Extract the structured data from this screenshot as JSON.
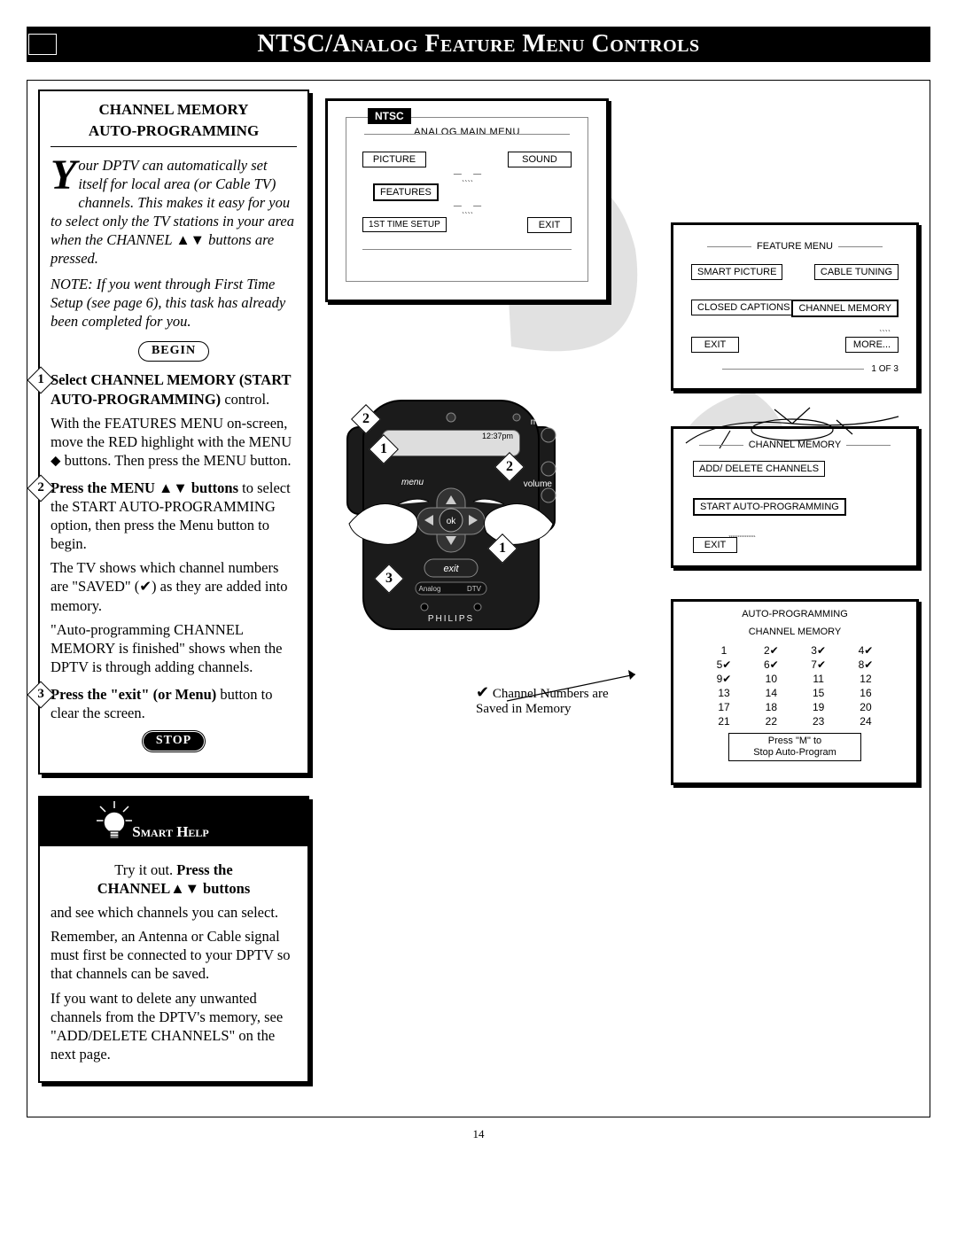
{
  "title": "NTSC/Analog Feature Menu Controls",
  "page_number": "14",
  "panel1": {
    "heading_line1": "CHANNEL MEMORY",
    "heading_line2": "AUTO-PROGRAMMING",
    "intro": "Your DPTV can automatically set itself for local area (or Cable TV) channels. This makes it easy for you to select only the TV stations in your area when the CHANNEL ▲▼ buttons are pressed.",
    "note": "NOTE: If you went through First Time Setup (see page 6), this task has already been completed for you.",
    "begin": "BEGIN",
    "stop": "STOP",
    "step1": {
      "bold": "Select CHANNEL MEMORY (START AUTO-PROGRAMMING)",
      "tail": " control.",
      "p2": "With the FEATURES MENU on-screen, move the RED highlight with the MENU ⬥ buttons. Then press the MENU button."
    },
    "step2": {
      "lead": "Press the MENU ▲▼ buttons ",
      "tail": "to select the START AUTO-PROGRAMMING option, then press the Menu button to begin.",
      "p2": "The TV shows which channel numbers are \"SAVED\" (✔) as they are added into memory.",
      "p3": "\"Auto-programming CHANNEL MEMORY is finished\" shows when the DPTV is through adding channels."
    },
    "step3": {
      "bold": "Press the \"exit\" (or Menu)",
      "tail": " button to clear the screen."
    }
  },
  "smart_help": {
    "title": "Smart Help",
    "p1a": "Try it out.  ",
    "p1b": "Press the CHANNEL▲▼ buttons",
    "p2": "and see which channels you can select.",
    "p3": "Remember, an Antenna or Cable signal must first be connected to your DPTV so that channels can be saved.",
    "p4": "If you want to delete any unwanted channels from the DPTV's memory, see \"ADD/DELETE CHANNELS\" on the next page."
  },
  "screens": {
    "ntsc": "NTSC",
    "analog_main_menu": "ANALOG MAIN MENU",
    "picture": "PICTURE",
    "sound": "SOUND",
    "features": "FEATURES",
    "first_time": "1ST TIME SETUP",
    "exit": "EXIT",
    "feature_menu": "FEATURE MENU",
    "smart_picture": "SMART PICTURE",
    "cable_tuning": "CABLE TUNING",
    "closed_captions": "CLOSED CAPTIONS",
    "channel_memory": "CHANNEL MEMORY",
    "more": "MORE...",
    "page_ind": "1 OF 3",
    "add_delete": "ADD/ DELETE CHANNELS",
    "start_auto": "START AUTO-PROGRAMMING",
    "ap_title1": "AUTO-PROGRAMMING",
    "ap_title2": "CHANNEL MEMORY",
    "stop_msg1": "Press \"M\" to",
    "stop_msg2": "Stop Auto-Program",
    "saved_note": "Channel Numbers are Saved in Memory",
    "remote_time": "12:37pm"
  },
  "channels": {
    "rows": [
      [
        "1",
        "2✔",
        "3✔",
        "4✔"
      ],
      [
        "5✔",
        "6✔",
        "7✔",
        "8✔"
      ],
      [
        "9✔",
        "10",
        "11",
        "12"
      ],
      [
        "13",
        "14",
        "15",
        "16"
      ],
      [
        "17",
        "18",
        "19",
        "20"
      ],
      [
        "21",
        "22",
        "23",
        "24"
      ]
    ]
  },
  "remote": {
    "mute": "mute",
    "volume": "volume",
    "menu": "menu",
    "ok": "ok",
    "exit": "exit",
    "analog": "Analog",
    "dtv": "DTV",
    "brand": "PHILIPS"
  }
}
